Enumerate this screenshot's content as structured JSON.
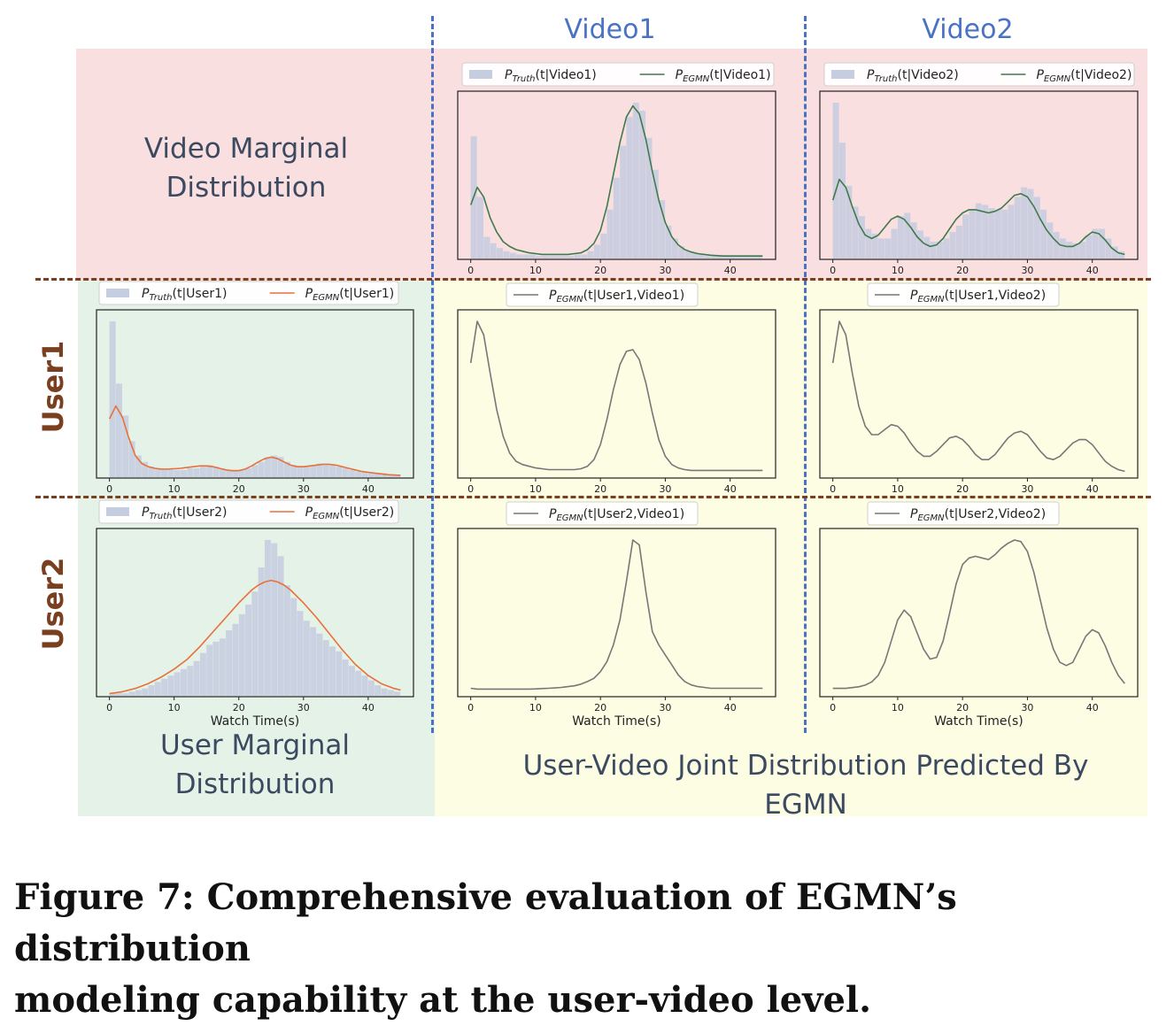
{
  "columns": {
    "video1": "Video1",
    "video2": "Video2"
  },
  "rows": {
    "user1": "User1",
    "user2": "User2"
  },
  "labels": {
    "video_marginal_line1": "Video Marginal",
    "video_marginal_line2": "Distribution",
    "user_marginal_line1": "User Marginal",
    "user_marginal_line2": "Distribution",
    "joint": "User-Video Joint Distribution Predicted By EGMN"
  },
  "caption": {
    "line1": "Figure 7: Comprehensive evaluation of EGMN’s distribution",
    "line2": "modeling capability at the user-video level."
  },
  "colors": {
    "hist": "#c5cde0",
    "video_line": "#3f7a4c",
    "user_line": "#e8703a",
    "joint_line": "#777777",
    "column_title": "#4a72c4",
    "row_title": "#7a3f1f"
  },
  "chart_data": [
    {
      "id": "video1",
      "type": "bar+line",
      "legend": [
        {
          "main": "P",
          "sub": "Truth",
          "rest": "(t|Video1)",
          "kind": "hist"
        },
        {
          "main": "P",
          "sub": "EGMN",
          "rest": "(t|Video1)",
          "kind": "line"
        }
      ],
      "xticks": [
        0,
        10,
        20,
        30,
        40
      ],
      "xlim": [
        -2,
        47
      ],
      "xlabel": "",
      "hist": {
        "start": 0,
        "width": 1,
        "values": [
          0.76,
          0.38,
          0.13,
          0.09,
          0.06,
          0.04,
          0.03,
          0.02,
          0.02,
          0.02,
          0.01,
          0.01,
          0.01,
          0.01,
          0.01,
          0.01,
          0.02,
          0.02,
          0.04,
          0.08,
          0.15,
          0.3,
          0.5,
          0.7,
          0.88,
          0.97,
          0.92,
          0.75,
          0.55,
          0.36,
          0.2,
          0.12,
          0.07,
          0.04,
          0.03,
          0.02,
          0.01,
          0.01,
          0.01,
          0.01,
          0.01,
          0.01,
          0.01,
          0.01,
          0.01
        ]
      },
      "line": {
        "x": [
          0,
          1,
          2,
          3,
          4,
          5,
          6,
          7,
          8,
          9,
          10,
          11,
          12,
          13,
          14,
          15,
          16,
          17,
          18,
          19,
          20,
          21,
          22,
          23,
          24,
          25,
          26,
          27,
          28,
          29,
          30,
          31,
          32,
          33,
          34,
          35,
          36,
          37,
          38,
          39,
          40,
          41,
          42,
          43,
          44,
          45
        ],
        "y": [
          0.33,
          0.44,
          0.38,
          0.25,
          0.16,
          0.1,
          0.07,
          0.05,
          0.04,
          0.03,
          0.025,
          0.02,
          0.02,
          0.02,
          0.02,
          0.02,
          0.025,
          0.03,
          0.05,
          0.09,
          0.17,
          0.32,
          0.52,
          0.72,
          0.88,
          0.95,
          0.9,
          0.74,
          0.54,
          0.36,
          0.22,
          0.13,
          0.08,
          0.05,
          0.035,
          0.025,
          0.02,
          0.015,
          0.012,
          0.01,
          0.01,
          0.01,
          0.01,
          0.01,
          0.01,
          0.01
        ]
      }
    },
    {
      "id": "video2",
      "type": "bar+line",
      "legend": [
        {
          "main": "P",
          "sub": "Truth",
          "rest": "(t|Video2)",
          "kind": "hist"
        },
        {
          "main": "P",
          "sub": "EGMN",
          "rest": "(t|Video2)",
          "kind": "line"
        }
      ],
      "xticks": [
        0,
        10,
        20,
        30,
        40
      ],
      "xlim": [
        -2,
        47
      ],
      "xlabel": "",
      "hist": {
        "start": 0,
        "width": 1,
        "values": [
          0.97,
          0.72,
          0.45,
          0.32,
          0.26,
          0.18,
          0.15,
          0.12,
          0.12,
          0.18,
          0.26,
          0.28,
          0.22,
          0.17,
          0.13,
          0.1,
          0.1,
          0.12,
          0.16,
          0.2,
          0.27,
          0.3,
          0.34,
          0.33,
          0.31,
          0.3,
          0.3,
          0.33,
          0.38,
          0.44,
          0.43,
          0.38,
          0.3,
          0.22,
          0.16,
          0.12,
          0.1,
          0.09,
          0.1,
          0.14,
          0.18,
          0.18,
          0.12,
          0.07,
          0.04
        ]
      },
      "line": {
        "x": [
          0,
          1,
          2,
          3,
          4,
          5,
          6,
          7,
          8,
          9,
          10,
          11,
          12,
          13,
          14,
          15,
          16,
          17,
          18,
          19,
          20,
          21,
          22,
          23,
          24,
          25,
          26,
          27,
          28,
          29,
          30,
          31,
          32,
          33,
          34,
          35,
          36,
          37,
          38,
          39,
          40,
          41,
          42,
          43,
          44,
          45
        ],
        "y": [
          0.36,
          0.49,
          0.44,
          0.32,
          0.21,
          0.14,
          0.12,
          0.14,
          0.19,
          0.24,
          0.26,
          0.24,
          0.19,
          0.13,
          0.09,
          0.07,
          0.08,
          0.12,
          0.18,
          0.24,
          0.28,
          0.3,
          0.3,
          0.29,
          0.28,
          0.29,
          0.31,
          0.35,
          0.39,
          0.4,
          0.38,
          0.32,
          0.24,
          0.17,
          0.12,
          0.08,
          0.07,
          0.07,
          0.09,
          0.13,
          0.16,
          0.15,
          0.11,
          0.06,
          0.03,
          0.02
        ]
      }
    },
    {
      "id": "user1",
      "type": "bar+line",
      "legend": [
        {
          "main": "P",
          "sub": "Truth",
          "rest": "(t|User1)",
          "kind": "hist"
        },
        {
          "main": "P",
          "sub": "EGMN",
          "rest": "(t|User1)",
          "kind": "line"
        }
      ],
      "xticks": [
        0,
        10,
        20,
        30,
        40
      ],
      "xlim": [
        -2,
        47
      ],
      "xlabel": "",
      "hist": {
        "start": 0,
        "width": 1,
        "values": [
          0.97,
          0.58,
          0.38,
          0.22,
          0.13,
          0.09,
          0.06,
          0.05,
          0.04,
          0.04,
          0.04,
          0.04,
          0.05,
          0.05,
          0.06,
          0.07,
          0.06,
          0.05,
          0.04,
          0.04,
          0.04,
          0.05,
          0.07,
          0.09,
          0.12,
          0.13,
          0.12,
          0.09,
          0.07,
          0.06,
          0.06,
          0.07,
          0.08,
          0.08,
          0.07,
          0.06,
          0.05,
          0.04,
          0.03,
          0.03,
          0.02,
          0.02,
          0.02,
          0.01,
          0.01
        ]
      },
      "line": {
        "x": [
          0,
          1,
          2,
          3,
          4,
          5,
          6,
          7,
          8,
          9,
          10,
          11,
          12,
          13,
          14,
          15,
          16,
          17,
          18,
          19,
          20,
          21,
          22,
          23,
          24,
          25,
          26,
          27,
          28,
          29,
          30,
          31,
          32,
          33,
          34,
          35,
          36,
          37,
          38,
          39,
          40,
          41,
          42,
          43,
          44,
          45
        ],
        "y": [
          0.36,
          0.44,
          0.37,
          0.24,
          0.13,
          0.08,
          0.06,
          0.05,
          0.045,
          0.045,
          0.047,
          0.05,
          0.055,
          0.06,
          0.065,
          0.065,
          0.06,
          0.05,
          0.04,
          0.035,
          0.035,
          0.045,
          0.065,
          0.09,
          0.11,
          0.12,
          0.11,
          0.09,
          0.07,
          0.06,
          0.06,
          0.065,
          0.07,
          0.075,
          0.075,
          0.07,
          0.06,
          0.05,
          0.04,
          0.03,
          0.025,
          0.02,
          0.015,
          0.01,
          0.008,
          0.006
        ]
      }
    },
    {
      "id": "user1-video1",
      "type": "line",
      "legend": [
        {
          "main": "P",
          "sub": "EGMN",
          "rest": "(t|User1,Video1)",
          "kind": "line"
        }
      ],
      "xticks": [
        0,
        10,
        20,
        30,
        40
      ],
      "xlim": [
        -2,
        47
      ],
      "xlabel": "",
      "line": {
        "x": [
          0,
          1,
          2,
          3,
          4,
          5,
          6,
          7,
          8,
          9,
          10,
          11,
          12,
          13,
          14,
          15,
          16,
          17,
          18,
          19,
          20,
          21,
          22,
          23,
          24,
          25,
          26,
          27,
          28,
          29,
          30,
          31,
          32,
          33,
          34,
          35,
          36,
          37,
          38,
          39,
          40,
          41,
          42,
          43,
          44,
          45
        ],
        "y": [
          0.68,
          0.93,
          0.85,
          0.62,
          0.4,
          0.24,
          0.14,
          0.09,
          0.07,
          0.06,
          0.05,
          0.045,
          0.04,
          0.04,
          0.04,
          0.04,
          0.04,
          0.045,
          0.06,
          0.1,
          0.19,
          0.34,
          0.52,
          0.67,
          0.75,
          0.76,
          0.7,
          0.56,
          0.38,
          0.22,
          0.12,
          0.07,
          0.05,
          0.04,
          0.035,
          0.035,
          0.035,
          0.035,
          0.035,
          0.035,
          0.035,
          0.035,
          0.035,
          0.035,
          0.035,
          0.035
        ]
      }
    },
    {
      "id": "user1-video2",
      "type": "line",
      "legend": [
        {
          "main": "P",
          "sub": "EGMN",
          "rest": "(t|User1,Video2)",
          "kind": "line"
        }
      ],
      "xticks": [
        0,
        10,
        20,
        30,
        40
      ],
      "xlim": [
        -2,
        47
      ],
      "xlabel": "",
      "line": {
        "x": [
          0,
          1,
          2,
          3,
          4,
          5,
          6,
          7,
          8,
          9,
          10,
          11,
          12,
          13,
          14,
          15,
          16,
          17,
          18,
          19,
          20,
          21,
          22,
          23,
          24,
          25,
          26,
          27,
          28,
          29,
          30,
          31,
          32,
          33,
          34,
          35,
          36,
          37,
          38,
          39,
          40,
          41,
          42,
          43,
          44,
          45
        ],
        "y": [
          0.68,
          0.93,
          0.85,
          0.62,
          0.42,
          0.3,
          0.25,
          0.25,
          0.28,
          0.31,
          0.3,
          0.26,
          0.2,
          0.15,
          0.12,
          0.12,
          0.15,
          0.19,
          0.23,
          0.24,
          0.22,
          0.18,
          0.13,
          0.1,
          0.1,
          0.13,
          0.18,
          0.23,
          0.26,
          0.27,
          0.25,
          0.2,
          0.15,
          0.11,
          0.1,
          0.12,
          0.16,
          0.2,
          0.22,
          0.22,
          0.19,
          0.14,
          0.09,
          0.06,
          0.04,
          0.03
        ]
      }
    },
    {
      "id": "user2",
      "type": "bar+line",
      "legend": [
        {
          "main": "P",
          "sub": "Truth",
          "rest": "(t|User2)",
          "kind": "hist"
        },
        {
          "main": "P",
          "sub": "EGMN",
          "rest": "(t|User2)",
          "kind": "line"
        }
      ],
      "xticks": [
        0,
        10,
        20,
        30,
        40
      ],
      "xlim": [
        -2,
        47
      ],
      "xlabel": "Watch Time(s)",
      "hist": {
        "start": 0,
        "width": 1,
        "values": [
          0.01,
          0.01,
          0.01,
          0.02,
          0.03,
          0.04,
          0.06,
          0.08,
          0.1,
          0.12,
          0.14,
          0.16,
          0.18,
          0.21,
          0.26,
          0.31,
          0.33,
          0.35,
          0.4,
          0.44,
          0.5,
          0.56,
          0.64,
          0.79,
          0.96,
          0.94,
          0.86,
          0.68,
          0.6,
          0.52,
          0.46,
          0.42,
          0.38,
          0.34,
          0.3,
          0.27,
          0.22,
          0.18,
          0.15,
          0.12,
          0.09,
          0.06,
          0.04,
          0.03,
          0.02
        ]
      },
      "line": {
        "x": [
          0,
          2,
          4,
          6,
          8,
          10,
          12,
          14,
          16,
          18,
          20,
          21,
          22,
          23,
          24,
          25,
          26,
          27,
          28,
          29,
          30,
          32,
          34,
          36,
          38,
          40,
          42,
          44,
          45
        ],
        "y": [
          0.008,
          0.02,
          0.04,
          0.07,
          0.11,
          0.16,
          0.22,
          0.3,
          0.39,
          0.48,
          0.57,
          0.61,
          0.65,
          0.68,
          0.7,
          0.71,
          0.7,
          0.68,
          0.65,
          0.61,
          0.57,
          0.48,
          0.38,
          0.28,
          0.19,
          0.12,
          0.07,
          0.04,
          0.03
        ]
      }
    },
    {
      "id": "user2-video1",
      "type": "line",
      "legend": [
        {
          "main": "P",
          "sub": "EGMN",
          "rest": "(t|User2,Video1)",
          "kind": "line"
        }
      ],
      "xticks": [
        0,
        10,
        20,
        30,
        40
      ],
      "xlim": [
        -2,
        47
      ],
      "xlabel": "Watch Time(s)",
      "line": {
        "x": [
          0,
          1,
          2,
          3,
          4,
          5,
          6,
          7,
          8,
          9,
          10,
          11,
          12,
          13,
          14,
          15,
          16,
          17,
          18,
          19,
          20,
          21,
          22,
          23,
          24,
          25,
          26,
          27,
          28,
          29,
          30,
          31,
          32,
          33,
          34,
          35,
          36,
          37,
          38,
          39,
          40,
          41,
          42,
          43,
          44,
          45
        ],
        "y": [
          0.04,
          0.035,
          0.035,
          0.035,
          0.035,
          0.035,
          0.035,
          0.035,
          0.035,
          0.035,
          0.036,
          0.038,
          0.04,
          0.042,
          0.045,
          0.05,
          0.055,
          0.065,
          0.08,
          0.1,
          0.14,
          0.2,
          0.3,
          0.45,
          0.68,
          0.93,
          0.9,
          0.62,
          0.38,
          0.3,
          0.24,
          0.18,
          0.12,
          0.08,
          0.06,
          0.05,
          0.045,
          0.04,
          0.04,
          0.04,
          0.04,
          0.04,
          0.04,
          0.04,
          0.04,
          0.04
        ]
      }
    },
    {
      "id": "user2-video2",
      "type": "line",
      "legend": [
        {
          "main": "P",
          "sub": "EGMN",
          "rest": "(t|User2,Video2)",
          "kind": "line"
        }
      ],
      "xticks": [
        0,
        10,
        20,
        30,
        40
      ],
      "xlim": [
        -2,
        47
      ],
      "xlabel": "Watch Time(s)",
      "line": {
        "x": [
          0,
          1,
          2,
          3,
          4,
          5,
          6,
          7,
          8,
          9,
          10,
          11,
          12,
          13,
          14,
          15,
          16,
          17,
          18,
          19,
          20,
          21,
          22,
          23,
          24,
          25,
          26,
          27,
          28,
          29,
          30,
          31,
          32,
          33,
          34,
          35,
          36,
          37,
          38,
          39,
          40,
          41,
          42,
          43,
          44,
          45
        ],
        "y": [
          0.04,
          0.04,
          0.04,
          0.045,
          0.05,
          0.06,
          0.08,
          0.12,
          0.2,
          0.33,
          0.46,
          0.52,
          0.48,
          0.38,
          0.28,
          0.22,
          0.23,
          0.33,
          0.5,
          0.68,
          0.8,
          0.84,
          0.85,
          0.84,
          0.83,
          0.86,
          0.9,
          0.93,
          0.95,
          0.94,
          0.88,
          0.75,
          0.58,
          0.41,
          0.28,
          0.2,
          0.18,
          0.2,
          0.28,
          0.36,
          0.4,
          0.38,
          0.3,
          0.2,
          0.12,
          0.07
        ]
      }
    }
  ]
}
